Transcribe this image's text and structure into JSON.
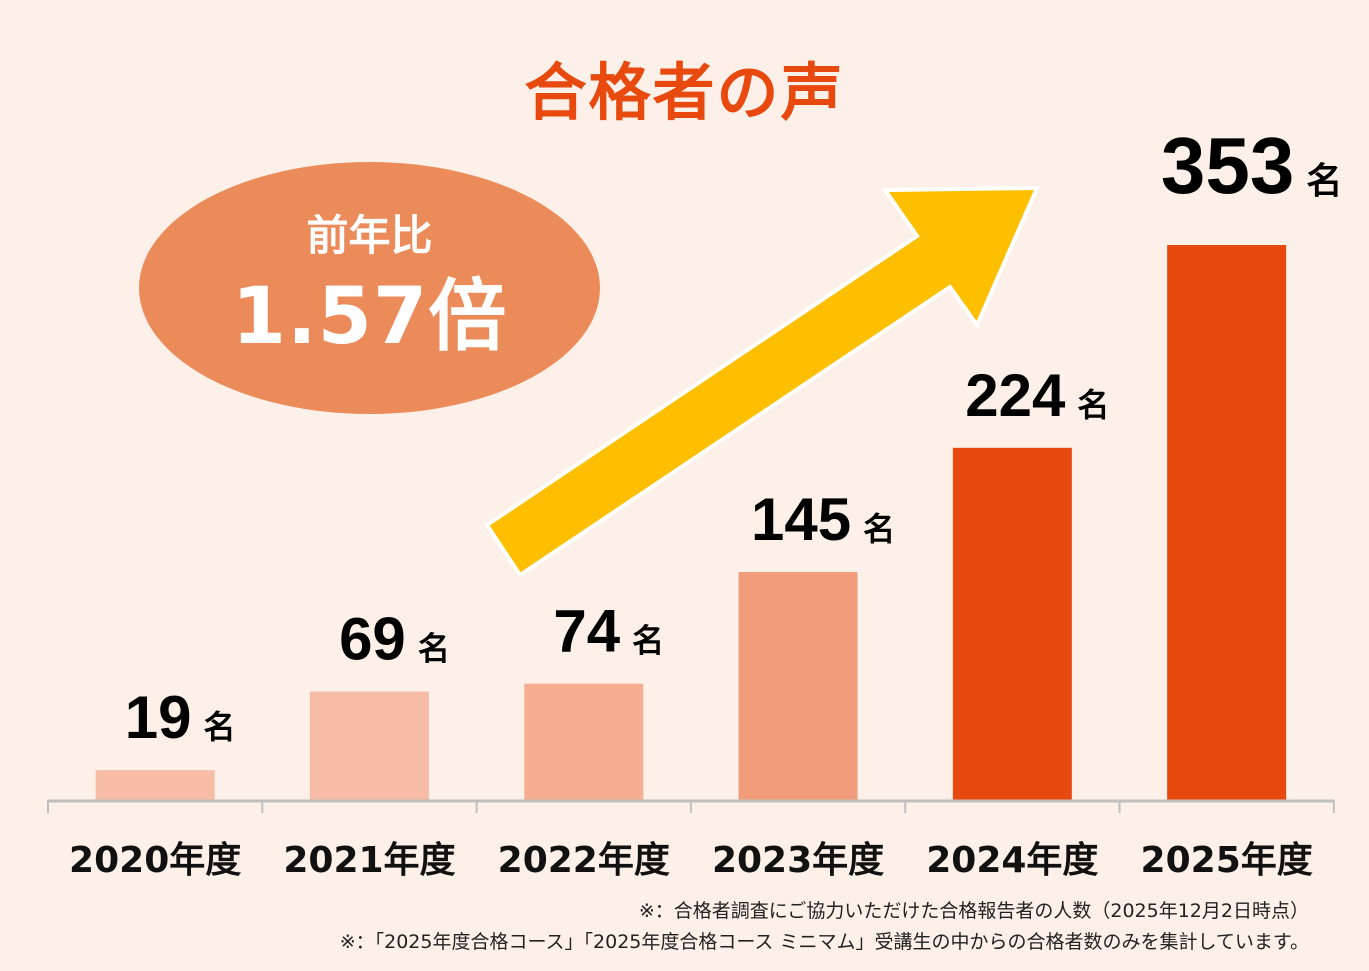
{
  "title": "合格者の声",
  "badge": {
    "line1": "前年比",
    "line2": "1.57倍"
  },
  "chart_data": {
    "type": "bar",
    "categories": [
      "2020年度",
      "2021年度",
      "2022年度",
      "2023年度",
      "2024年度",
      "2025年度"
    ],
    "values": [
      19,
      69,
      74,
      145,
      224,
      353
    ],
    "unit": "名",
    "colors": [
      "#f7bca6",
      "#f7bca6",
      "#f5ae92",
      "#f19c7b",
      "#e8490f",
      "#e8490f"
    ],
    "ylim": [
      0,
      353
    ],
    "grid": false,
    "arrow_color": "#fdbf00"
  },
  "notes": [
    "※：合格者調査にご協力いただけた合格報告者の人数（2025年12月2日時点）",
    "※：「2025年度合格コース」「2025年度合格コース ミニマム」受講生の中からの合格者数のみを集計しています。"
  ]
}
